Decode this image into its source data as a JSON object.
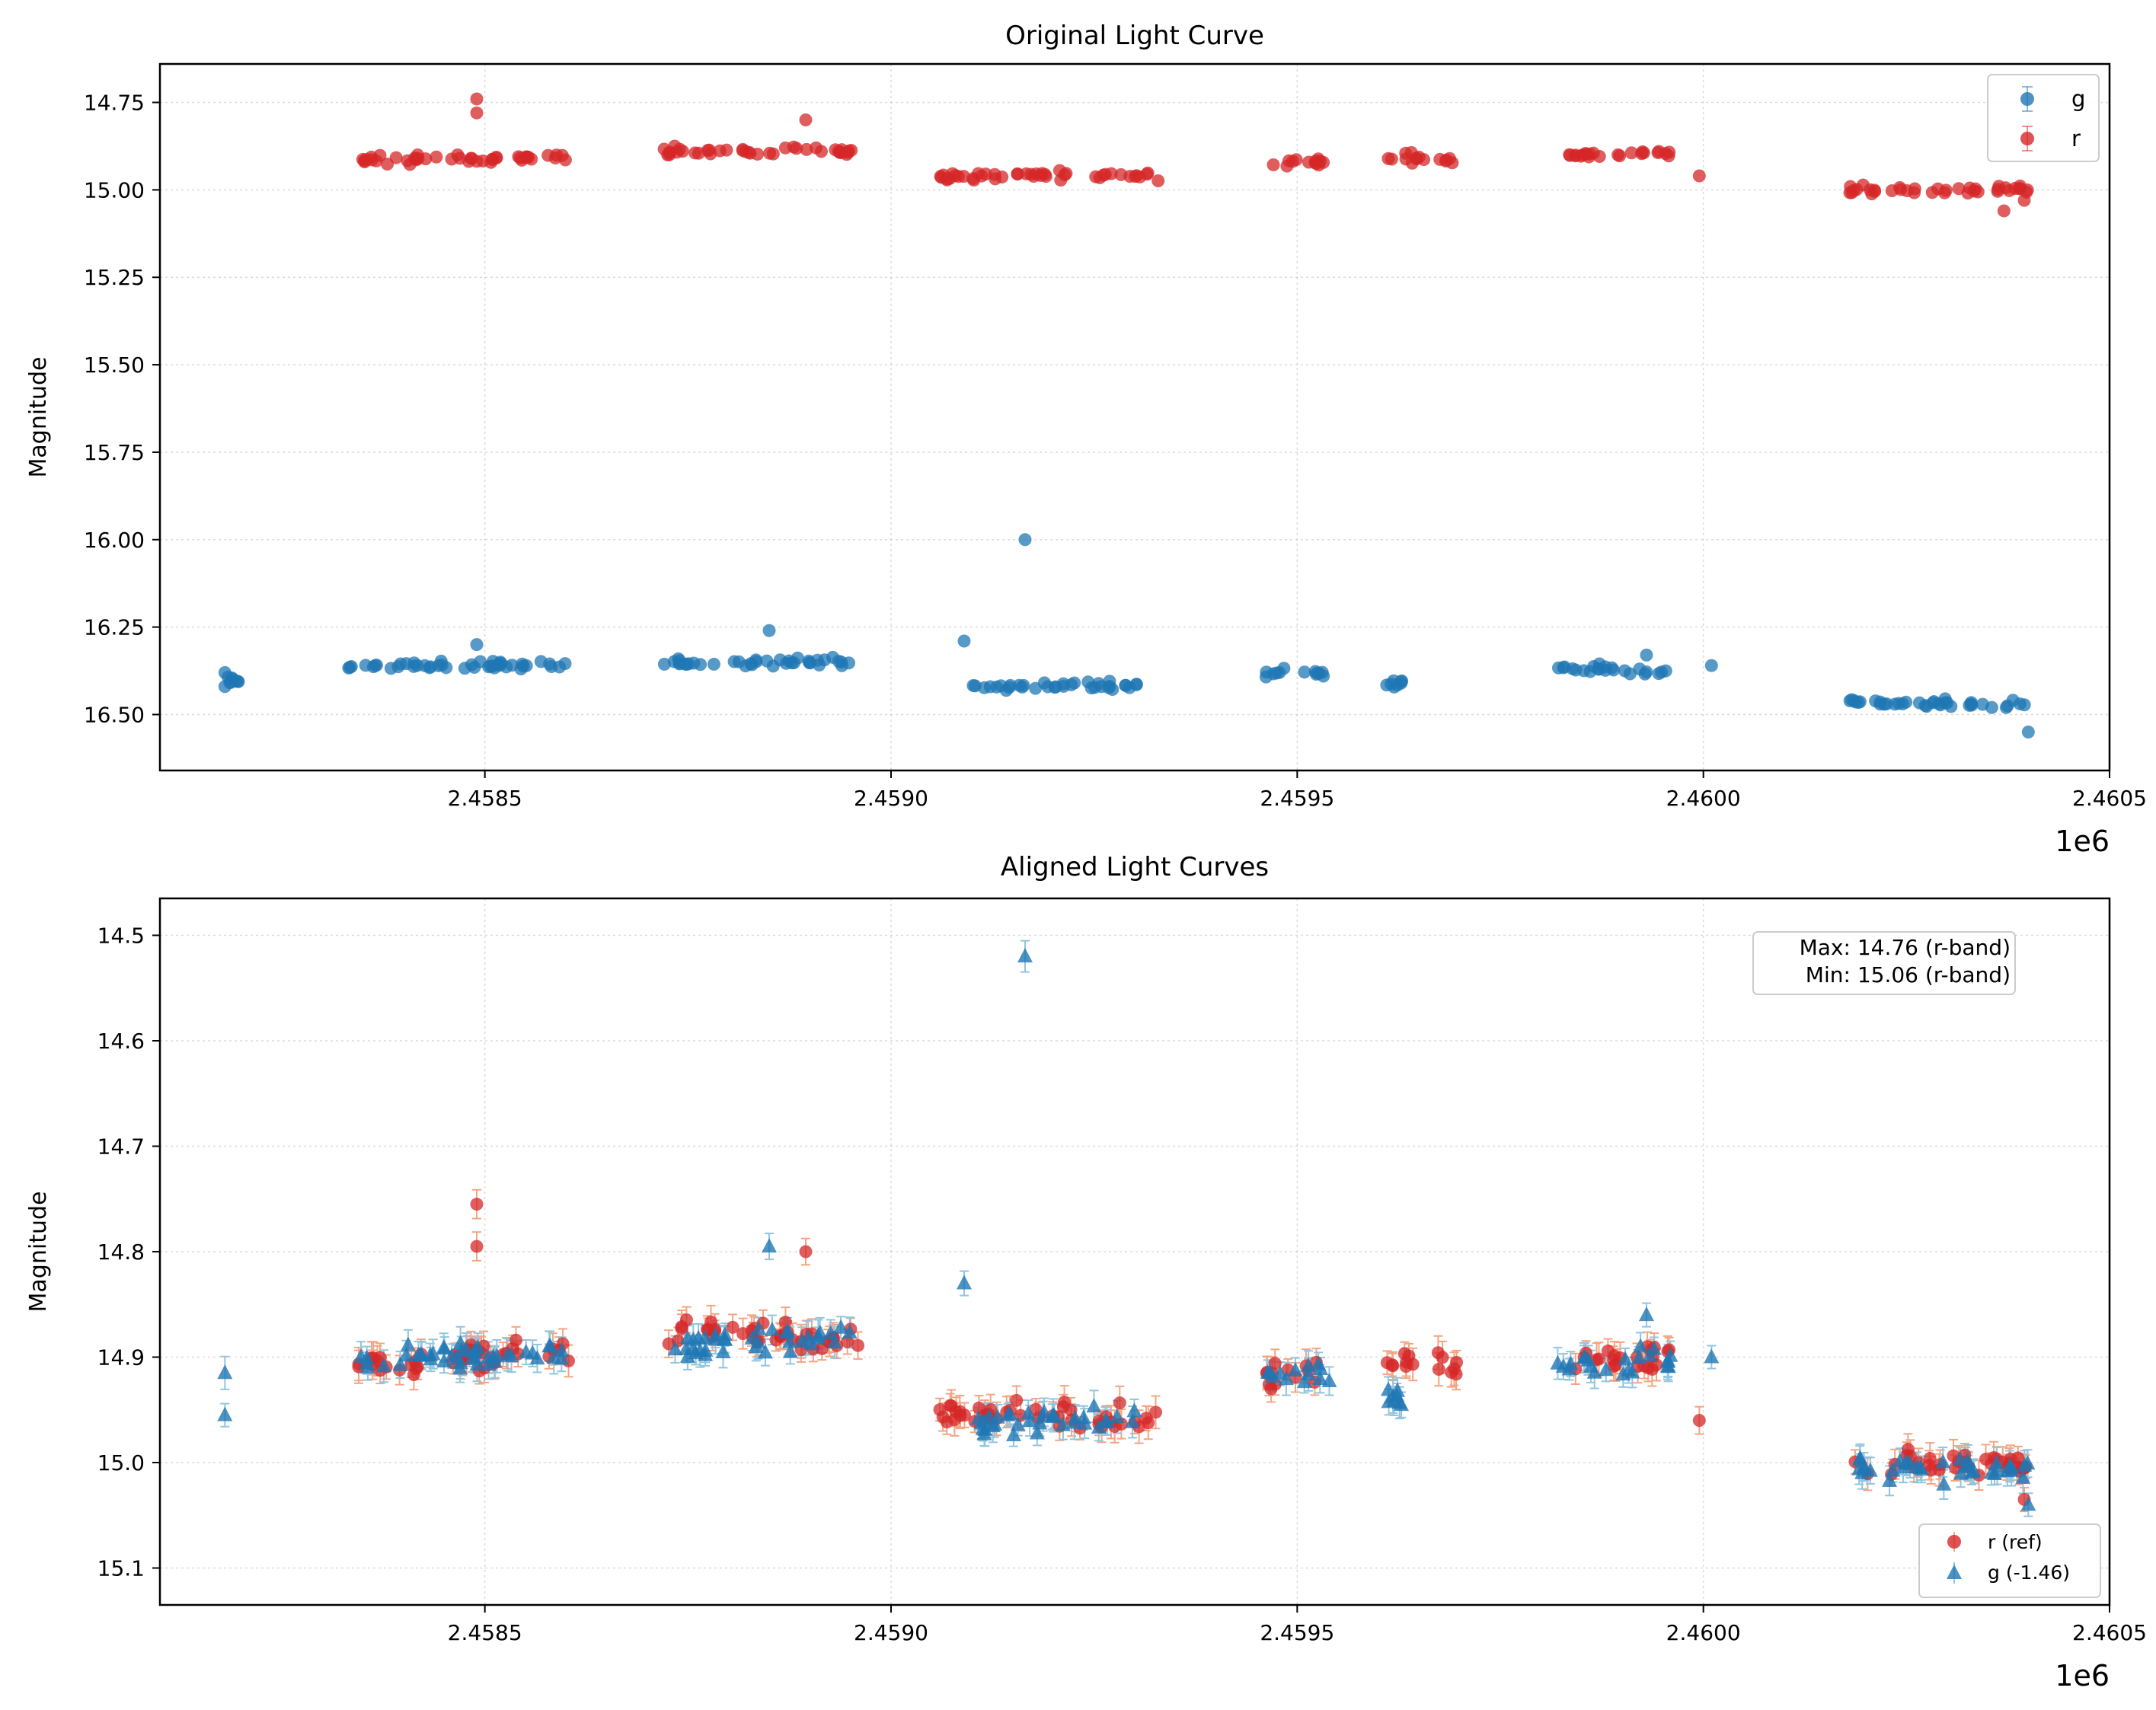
{
  "chart_data": [
    {
      "type": "scatter",
      "title": "Original Light Curve",
      "xlabel": "",
      "ylabel": "Magnitude",
      "x_offset_label": "1e6",
      "xlim": [
        2458100,
        2460500
      ],
      "ylim": [
        16.66,
        14.64
      ],
      "y_inverted": true,
      "grid": true,
      "x_ticks": [
        {
          "value": 2458500,
          "label": "2.4585"
        },
        {
          "value": 2459000,
          "label": "2.4590"
        },
        {
          "value": 2459500,
          "label": "2.4595"
        },
        {
          "value": 2460000,
          "label": "2.4600"
        },
        {
          "value": 2460500,
          "label": "2.4605"
        }
      ],
      "y_ticks": [
        {
          "value": 14.75,
          "label": "14.75"
        },
        {
          "value": 15.0,
          "label": "15.00"
        },
        {
          "value": 15.25,
          "label": "15.25"
        },
        {
          "value": 15.5,
          "label": "15.50"
        },
        {
          "value": 15.75,
          "label": "15.75"
        },
        {
          "value": 16.0,
          "label": "16.00"
        },
        {
          "value": 16.25,
          "label": "16.25"
        },
        {
          "value": 16.5,
          "label": "16.50"
        }
      ],
      "legend": {
        "position": "top-right",
        "entries": [
          {
            "label": "g",
            "color": "#1f77b4",
            "marker": "circle"
          },
          {
            "label": "r",
            "color": "#d62728",
            "marker": "circle"
          }
        ]
      },
      "series": [
        {
          "name": "g",
          "color": "#1f77b4",
          "marker": "circle",
          "seasons": [
            [
              2458180,
              2458200,
              16.4
            ],
            [
              2458330,
              2458600,
              16.36
            ],
            [
              2458720,
              2458950,
              16.35
            ],
            [
              2459100,
              2459310,
              16.42
            ],
            [
              2459460,
              2459540,
              16.38
            ],
            [
              2459610,
              2459630,
              16.41
            ],
            [
              2459820,
              2459960,
              16.37
            ],
            [
              2460180,
              2460400,
              16.47
            ]
          ],
          "points": [
            [
              2458180,
              16.38
            ],
            [
              2458180,
              16.42
            ],
            [
              2458490,
              16.3
            ],
            [
              2458850,
              16.26
            ],
            [
              2459165,
              16.0
            ],
            [
              2459090,
              16.29
            ],
            [
              2460010,
              16.36
            ],
            [
              2460400,
              16.55
            ],
            [
              2459930,
              16.33
            ]
          ]
        },
        {
          "name": "r",
          "color": "#d62728",
          "marker": "circle",
          "seasons": [
            [
              2458340,
              2458610,
              14.91
            ],
            [
              2458720,
              2458960,
              14.89
            ],
            [
              2459060,
              2459330,
              14.96
            ],
            [
              2459460,
              2459540,
              14.92
            ],
            [
              2459610,
              2459700,
              14.91
            ],
            [
              2459820,
              2459960,
              14.9
            ],
            [
              2460180,
              2460400,
              15.0
            ]
          ],
          "points": [
            [
              2458490,
              14.74
            ],
            [
              2458490,
              14.78
            ],
            [
              2458895,
              14.8
            ],
            [
              2459995,
              14.96
            ],
            [
              2460395,
              15.03
            ],
            [
              2460370,
              15.06
            ]
          ]
        }
      ]
    },
    {
      "type": "scatter",
      "title": "Aligned Light Curves",
      "xlabel": "",
      "ylabel": "Magnitude",
      "x_offset_label": "1e6",
      "xlim": [
        2458100,
        2460500
      ],
      "ylim": [
        15.135,
        14.465
      ],
      "y_inverted": true,
      "grid": true,
      "error_bars": true,
      "x_ticks": [
        {
          "value": 2458500,
          "label": "2.4585"
        },
        {
          "value": 2459000,
          "label": "2.4590"
        },
        {
          "value": 2459500,
          "label": "2.4595"
        },
        {
          "value": 2460000,
          "label": "2.4600"
        },
        {
          "value": 2460500,
          "label": "2.4605"
        }
      ],
      "y_ticks": [
        {
          "value": 14.5,
          "label": "14.5"
        },
        {
          "value": 14.6,
          "label": "14.6"
        },
        {
          "value": 14.7,
          "label": "14.7"
        },
        {
          "value": 14.8,
          "label": "14.8"
        },
        {
          "value": 14.9,
          "label": "14.9"
        },
        {
          "value": 15.0,
          "label": "15.0"
        },
        {
          "value": 15.1,
          "label": "15.1"
        }
      ],
      "annotation": {
        "line1": "Max: 14.76 (r-band)",
        "line2": "Min: 15.06 (r-band)"
      },
      "legend": {
        "position": "bottom-right",
        "entries": [
          {
            "label": "r (ref)",
            "color": "#d62728",
            "marker": "circle"
          },
          {
            "label": "g (-1.46)",
            "color": "#1f77b4",
            "marker": "triangle"
          }
        ]
      },
      "series": [
        {
          "name": "r (ref)",
          "color": "#d62728",
          "marker": "circle",
          "error_color": "#f4a582",
          "seasons": [
            [
              2458340,
              2458610,
              14.9
            ],
            [
              2458720,
              2458960,
              14.88
            ],
            [
              2459060,
              2459330,
              14.955
            ],
            [
              2459460,
              2459540,
              14.915
            ],
            [
              2459610,
              2459700,
              14.905
            ],
            [
              2459820,
              2459960,
              14.9
            ],
            [
              2460180,
              2460400,
              15.0
            ]
          ],
          "points": [
            [
              2458490,
              14.755
            ],
            [
              2458490,
              14.795
            ],
            [
              2458895,
              14.8
            ],
            [
              2459995,
              14.96
            ],
            [
              2460395,
              15.035
            ]
          ]
        },
        {
          "name": "g (-1.46)",
          "color": "#1f77b4",
          "marker": "triangle",
          "error_color": "#92c5de",
          "seasons": [
            [
              2458330,
              2458600,
              14.9
            ],
            [
              2458720,
              2458950,
              14.885
            ],
            [
              2459100,
              2459310,
              14.96
            ],
            [
              2459460,
              2459540,
              14.915
            ],
            [
              2459610,
              2459630,
              14.94
            ],
            [
              2459820,
              2459960,
              14.905
            ],
            [
              2460180,
              2460400,
              15.005
            ]
          ],
          "points": [
            [
              2458180,
              14.915
            ],
            [
              2458180,
              14.955
            ],
            [
              2459165,
              14.52
            ],
            [
              2458850,
              14.795
            ],
            [
              2459090,
              14.83
            ],
            [
              2460010,
              14.9
            ],
            [
              2459930,
              14.86
            ],
            [
              2460400,
              15.04
            ]
          ]
        }
      ]
    }
  ]
}
